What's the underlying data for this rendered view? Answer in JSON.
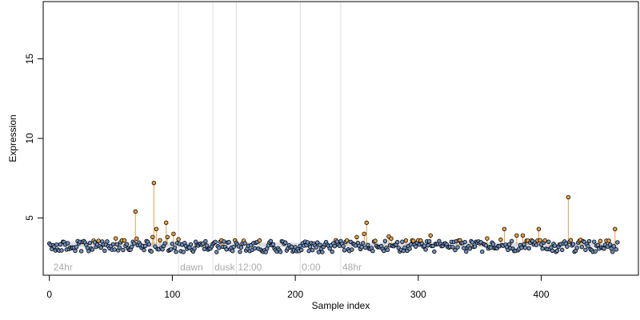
{
  "chart_data": {
    "type": "scatter",
    "xlabel": "Sample index",
    "ylabel": "Expression",
    "xlim": [
      -5,
      479
    ],
    "ylim": [
      1.4,
      18.6
    ],
    "x_ticks": [
      0,
      100,
      200,
      300,
      400
    ],
    "y_ticks": [
      5,
      10,
      15
    ],
    "baseline": 3.3,
    "grid": false,
    "colors": {
      "point_fill": "#6f8fbf",
      "point_fill_high": "#e8a040",
      "point_stroke": "#000000",
      "stem": "#e8a040",
      "band": "#bfc7d3",
      "vline": "#dddddd"
    },
    "annotations": [
      {
        "label": "24hr",
        "x": 2
      },
      {
        "label": "dawn",
        "x": 105,
        "line": true
      },
      {
        "label": "dusk",
        "x": 133,
        "line": true
      },
      {
        "label": "12:00",
        "x": 152,
        "line": true
      },
      {
        "label": "0:00",
        "x": 204,
        "line": true
      },
      {
        "label": "48hr",
        "x": 237,
        "line": true
      }
    ],
    "peaks": [
      {
        "x": 70,
        "y": 5.4
      },
      {
        "x": 71,
        "y": 3.7
      },
      {
        "x": 84,
        "y": 3.8
      },
      {
        "x": 85,
        "y": 7.2
      },
      {
        "x": 87,
        "y": 4.3
      },
      {
        "x": 95,
        "y": 4.7
      },
      {
        "x": 96,
        "y": 3.8
      },
      {
        "x": 101,
        "y": 4.0
      },
      {
        "x": 250,
        "y": 3.8
      },
      {
        "x": 256,
        "y": 4.0
      },
      {
        "x": 258,
        "y": 4.7
      },
      {
        "x": 310,
        "y": 3.9
      },
      {
        "x": 370,
        "y": 4.3
      },
      {
        "x": 380,
        "y": 3.9
      },
      {
        "x": 385,
        "y": 3.9
      },
      {
        "x": 398,
        "y": 4.3
      },
      {
        "x": 422,
        "y": 6.3
      },
      {
        "x": 424,
        "y": 3.6
      },
      {
        "x": 460,
        "y": 4.3
      }
    ]
  }
}
